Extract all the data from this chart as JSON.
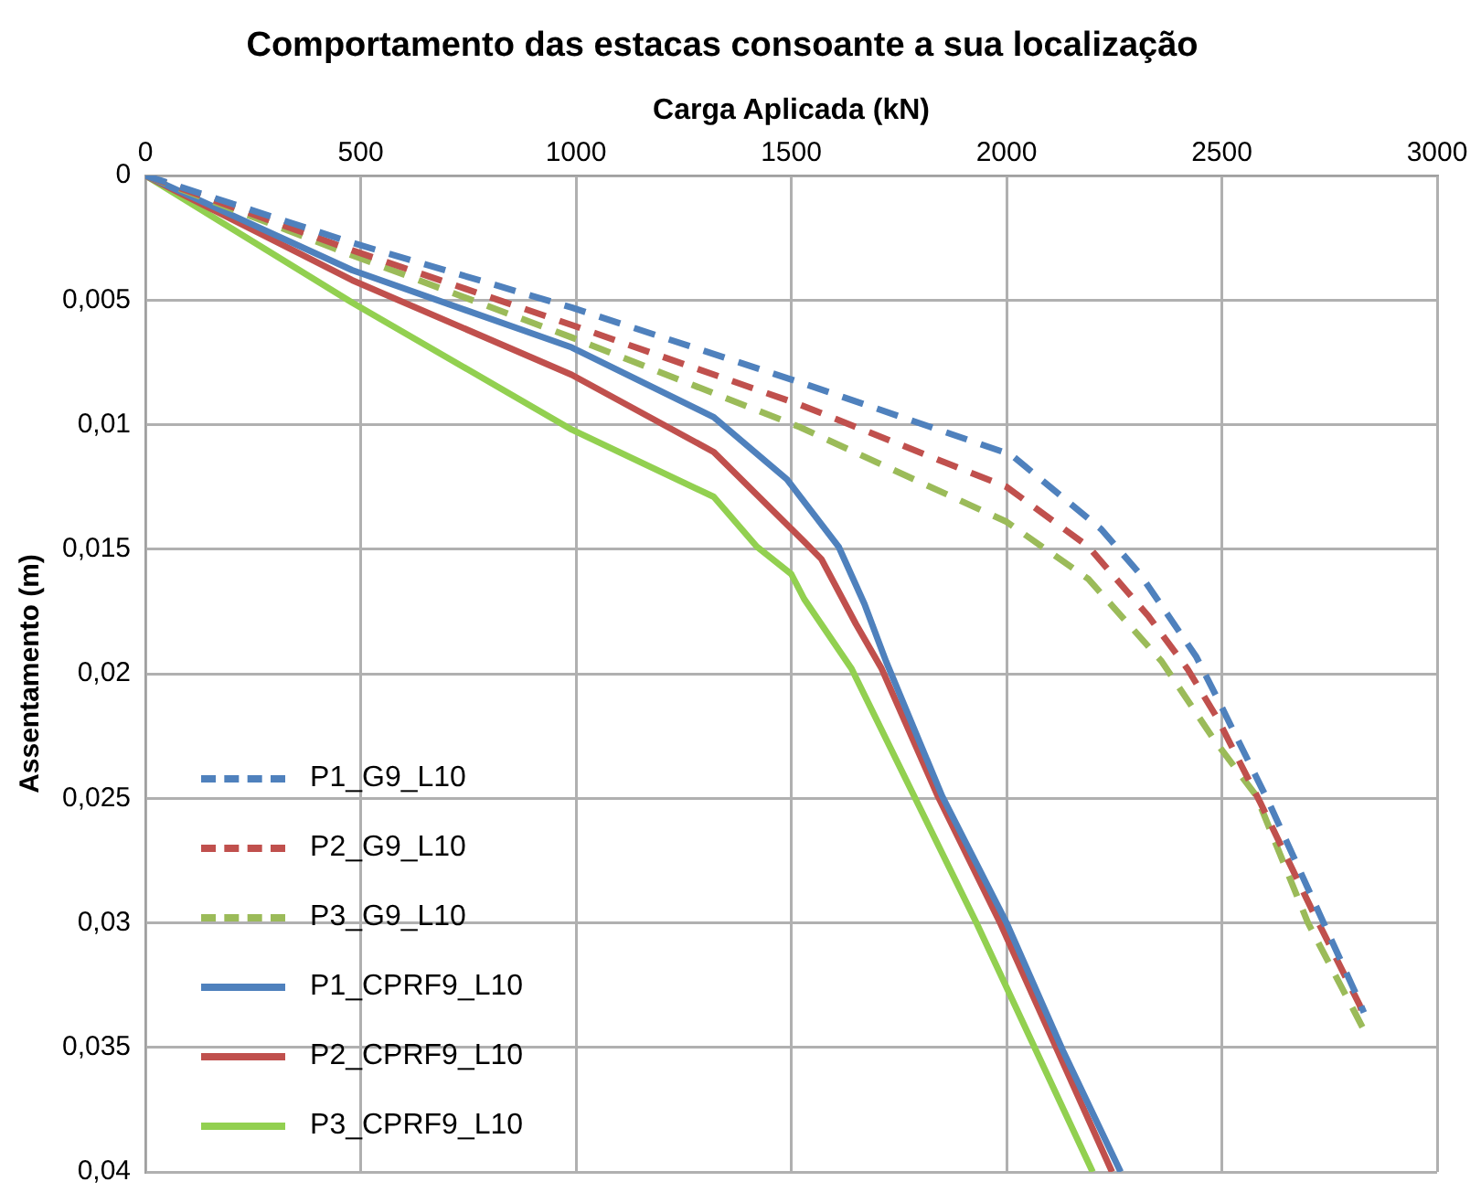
{
  "chart_data": {
    "type": "line",
    "title": "Comportamento das estacas consoante a sua localização",
    "xlabel": "Carga Aplicada (kN)",
    "ylabel": "Assentamento (m)",
    "xlim": [
      0,
      3000
    ],
    "xticks": [
      0,
      500,
      1000,
      1500,
      2000,
      2500,
      3000
    ],
    "ylim": [
      0.04,
      0
    ],
    "yticks": [
      0,
      {
        "value": 0.005,
        "label": "0,005"
      },
      {
        "value": 0.01,
        "label": "0,01"
      },
      {
        "value": 0.015,
        "label": "0,015"
      },
      {
        "value": 0.02,
        "label": "0,02"
      },
      {
        "value": 0.025,
        "label": "0,025"
      },
      {
        "value": 0.03,
        "label": "0,03"
      },
      {
        "value": 0.035,
        "label": "0,035"
      },
      {
        "value": 0.04,
        "label": "0,04"
      }
    ],
    "grid": true,
    "legend": "bottom left",
    "marker": "none",
    "series": [
      {
        "name": "P1_G9_L10",
        "color": "#4f81bd",
        "line_style": "dashed",
        "x": [
          0,
          480,
          990,
          1520,
          2010,
          2220,
          2310,
          2440,
          2490,
          2610,
          2710,
          2810,
          2830
        ],
        "values": [
          0,
          0.0027,
          0.0053,
          0.0083,
          0.0112,
          0.0142,
          0.016,
          0.0193,
          0.021,
          0.0252,
          0.029,
          0.0328,
          0.0336
        ]
      },
      {
        "name": "P2_G9_L10",
        "color": "#c0504d",
        "line_style": "dashed",
        "x": [
          0,
          480,
          990,
          1520,
          2000,
          2190,
          2330,
          2420,
          2490,
          2590,
          2710,
          2820,
          2830
        ],
        "values": [
          0,
          0.003,
          0.006,
          0.0092,
          0.0125,
          0.0149,
          0.0177,
          0.0198,
          0.0218,
          0.0252,
          0.0295,
          0.0333,
          0.0338
        ]
      },
      {
        "name": "P3_G9_L10",
        "color": "#9bbb59",
        "line_style": "dashed",
        "x": [
          0,
          480,
          990,
          1520,
          2000,
          2190,
          2360,
          2480,
          2580,
          2700,
          2830
        ],
        "values": [
          0,
          0.0032,
          0.0065,
          0.0101,
          0.0139,
          0.0162,
          0.0195,
          0.0226,
          0.0249,
          0.03,
          0.0343
        ]
      },
      {
        "name": "P1_CPRF9_L10",
        "color": "#4f81bd",
        "line_style": "solid",
        "x": [
          0,
          480,
          990,
          1320,
          1490,
          1610,
          1670,
          1720,
          1850,
          2000,
          2130,
          2265
        ],
        "values": [
          0,
          0.0038,
          0.0069,
          0.0097,
          0.0122,
          0.0149,
          0.0172,
          0.0195,
          0.0249,
          0.03,
          0.0351,
          0.04
        ]
      },
      {
        "name": "P2_CPRF9_L10",
        "color": "#c0504d",
        "line_style": "solid",
        "x": [
          0,
          480,
          990,
          1320,
          1530,
          1570,
          1650,
          1710,
          1840,
          1985,
          2245
        ],
        "values": [
          0,
          0.0042,
          0.008,
          0.0111,
          0.0147,
          0.0154,
          0.018,
          0.0198,
          0.0249,
          0.03,
          0.04
        ]
      },
      {
        "name": "P3_CPRF9_L10",
        "color": "#92d050",
        "line_style": "solid",
        "x": [
          0,
          480,
          990,
          1320,
          1420,
          1500,
          1530,
          1640,
          1785,
          1930,
          2200
        ],
        "values": [
          0,
          0.0051,
          0.0102,
          0.0129,
          0.0149,
          0.016,
          0.017,
          0.0198,
          0.0249,
          0.03,
          0.04
        ]
      }
    ]
  }
}
